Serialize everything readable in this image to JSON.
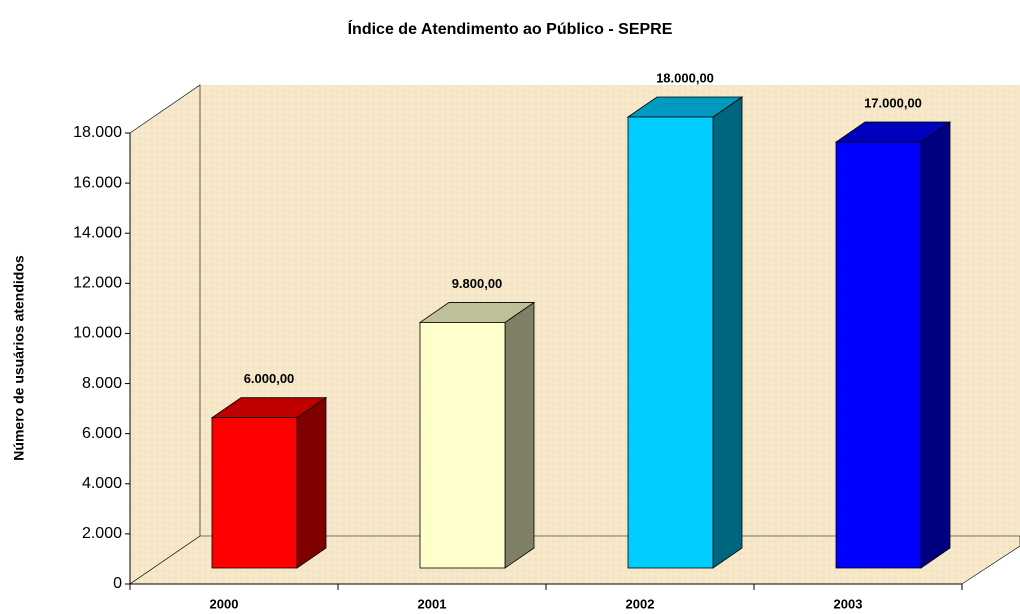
{
  "chart_data": {
    "type": "bar",
    "title": "Índice de Atendimento ao Público - SEPRE",
    "ylabel": "Número de usuários atendidos",
    "categories": [
      "2000",
      "2001",
      "2002",
      "2003"
    ],
    "values": [
      6000,
      9800,
      18000,
      17000
    ],
    "value_labels": [
      "6.000,00",
      "9.800,00",
      "18.000,00",
      "17.000,00"
    ],
    "colors": [
      "#ff0000",
      "#ffffcc",
      "#00ccff",
      "#0000ff"
    ],
    "ylim": [
      0,
      18000
    ],
    "yticks": [
      0,
      {
        "value": 2000,
        "label": "2.000"
      },
      {
        "value": 4000,
        "label": "4.000"
      },
      {
        "value": 6000,
        "label": "6.000"
      },
      {
        "value": 8000,
        "label": "8.000"
      },
      {
        "value": 10000,
        "label": "10.000"
      },
      {
        "value": 12000,
        "label": "12.000"
      },
      {
        "value": 14000,
        "label": "14.000"
      },
      {
        "value": 16000,
        "label": "16.000"
      },
      {
        "value": 18000,
        "label": "18.000"
      }
    ]
  }
}
